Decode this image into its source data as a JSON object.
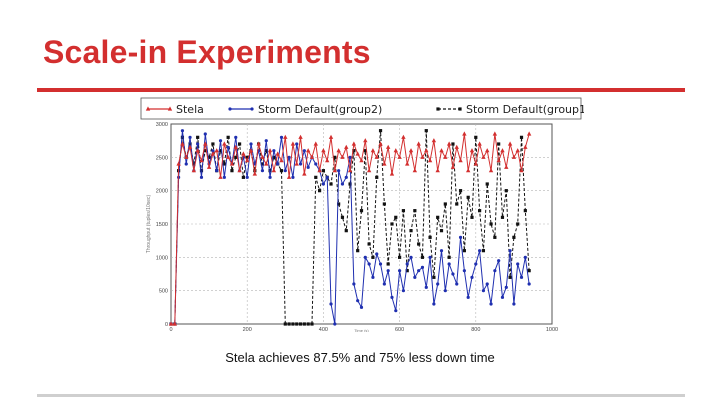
{
  "slide": {
    "title": "Scale-in Experiments",
    "caption": "Stela achieves 87.5% and 75% less down time"
  },
  "colors": {
    "title": "#d32f2f",
    "rule": "#d32f2f",
    "footer_rule": "#cfcfcf"
  },
  "chart_data": {
    "type": "line",
    "title": "",
    "xlabel": "Time (s)",
    "ylabel": "Throughput (tuples/10sec)",
    "xlim": [
      0,
      1000
    ],
    "ylim": [
      0,
      3000
    ],
    "x_ticks": [
      0,
      200,
      400,
      600,
      800,
      1000
    ],
    "y_ticks": [
      0,
      500,
      1000,
      1500,
      2000,
      2500,
      3000
    ],
    "grid": true,
    "legend_position": "top",
    "series": [
      {
        "name": "Stela",
        "color": "#d32f2f",
        "marker": "triangle-up",
        "dash": "solid",
        "x": [
          0,
          10,
          20,
          30,
          40,
          50,
          60,
          70,
          80,
          90,
          100,
          110,
          120,
          130,
          140,
          150,
          160,
          170,
          180,
          190,
          200,
          210,
          220,
          230,
          240,
          250,
          260,
          270,
          280,
          290,
          300,
          310,
          320,
          330,
          340,
          350,
          360,
          370,
          380,
          390,
          400,
          410,
          420,
          430,
          440,
          450,
          460,
          470,
          480,
          490,
          500,
          510,
          520,
          530,
          540,
          550,
          560,
          570,
          580,
          590,
          600,
          610,
          620,
          630,
          640,
          650,
          660,
          670,
          680,
          690,
          700,
          710,
          720,
          730,
          740,
          750,
          760,
          770,
          780,
          790,
          800,
          810,
          820,
          830,
          840,
          850,
          860,
          870,
          880,
          890,
          900,
          910,
          920,
          930,
          940
        ],
        "values": [
          0,
          0,
          2400,
          2700,
          2500,
          2650,
          2300,
          2600,
          2450,
          2700,
          2350,
          2550,
          2600,
          2200,
          2700,
          2500,
          2400,
          2650,
          2300,
          2550,
          2450,
          2600,
          2250,
          2700,
          2500,
          2400,
          2600,
          2300,
          2550,
          2450,
          2800,
          2200,
          2700,
          2400,
          2800,
          2250,
          2600,
          2500,
          2700,
          2300,
          2600,
          2450,
          2800,
          2300,
          2600,
          2500,
          2650,
          2300,
          2700,
          2550,
          2450,
          2750,
          2300,
          2600,
          2500,
          2700,
          2400,
          2650,
          2250,
          2600,
          2500,
          2800,
          2400,
          2600,
          2300,
          2700,
          2500,
          2600,
          2450,
          2750,
          2300,
          2600,
          2500,
          2700,
          2350,
          2650,
          2450,
          2850,
          2300,
          2600,
          2400,
          2700,
          2500,
          2600,
          2300,
          2850,
          2450,
          2600,
          2350,
          2700,
          2500,
          2600,
          2300,
          2650,
          2850
        ]
      },
      {
        "name": "Storm Default(group2)",
        "color": "#1f2fb0",
        "marker": "circle",
        "dash": "solid",
        "x": [
          0,
          10,
          20,
          30,
          40,
          50,
          60,
          70,
          80,
          90,
          100,
          110,
          120,
          130,
          140,
          150,
          160,
          170,
          180,
          190,
          200,
          210,
          220,
          230,
          240,
          250,
          260,
          270,
          280,
          290,
          300,
          310,
          320,
          330,
          340,
          350,
          360,
          370,
          380,
          390,
          400,
          410,
          420,
          430,
          440,
          450,
          460,
          470,
          480,
          490,
          500,
          510,
          520,
          530,
          540,
          550,
          560,
          570,
          580,
          590,
          600,
          610,
          620,
          630,
          640,
          650,
          660,
          670,
          680,
          690,
          700,
          710,
          720,
          730,
          740,
          750,
          760,
          770,
          780,
          790,
          800,
          810,
          820,
          830,
          840,
          850,
          860,
          870,
          880,
          890,
          900,
          910,
          920,
          930,
          940
        ],
        "values": [
          0,
          0,
          2200,
          2900,
          2400,
          2800,
          2300,
          2700,
          2200,
          2850,
          2400,
          2600,
          2300,
          2750,
          2200,
          2650,
          2400,
          2800,
          2300,
          2500,
          2200,
          2700,
          2400,
          2600,
          2300,
          2750,
          2200,
          2600,
          2400,
          2800,
          2300,
          2500,
          2200,
          2700,
          2400,
          2600,
          2350,
          2500,
          2400,
          2300,
          2100,
          2200,
          300,
          0,
          2300,
          2100,
          2200,
          2500,
          600,
          350,
          250,
          1000,
          900,
          700,
          1050,
          900,
          600,
          800,
          400,
          200,
          800,
          500,
          900,
          1000,
          700,
          800,
          850,
          550,
          1000,
          300,
          600,
          1100,
          500,
          900,
          750,
          600,
          1300,
          800,
          400,
          700,
          900,
          1100,
          500,
          600,
          300,
          800,
          950,
          400,
          550,
          1100,
          300,
          900,
          700,
          1000,
          600
        ]
      },
      {
        "name": "Storm Default(group1)",
        "color": "#111111",
        "marker": "square",
        "dash": "dashed",
        "x": [
          0,
          10,
          20,
          30,
          40,
          50,
          60,
          70,
          80,
          90,
          100,
          110,
          120,
          130,
          140,
          150,
          160,
          170,
          180,
          190,
          200,
          210,
          220,
          230,
          240,
          250,
          260,
          270,
          280,
          290,
          300,
          310,
          320,
          330,
          340,
          350,
          360,
          370,
          380,
          390,
          400,
          410,
          420,
          430,
          440,
          450,
          460,
          470,
          480,
          490,
          500,
          510,
          520,
          530,
          540,
          550,
          560,
          570,
          580,
          590,
          600,
          610,
          620,
          630,
          640,
          650,
          660,
          670,
          680,
          690,
          700,
          710,
          720,
          730,
          740,
          750,
          760,
          770,
          780,
          790,
          800,
          810,
          820,
          830,
          840,
          850,
          860,
          870,
          880,
          890,
          900,
          910,
          920,
          930,
          940
        ],
        "values": [
          0,
          0,
          2300,
          2800,
          2500,
          2700,
          2400,
          2800,
          2300,
          2600,
          2500,
          2700,
          2300,
          2600,
          2400,
          2800,
          2300,
          2500,
          2700,
          2200,
          2500,
          2600,
          2300,
          2700,
          2400,
          2600,
          2300,
          2500,
          2400,
          2300,
          0,
          0,
          0,
          0,
          0,
          0,
          0,
          0,
          2200,
          2000,
          2300,
          2200,
          2100,
          2500,
          1800,
          1600,
          1400,
          2100,
          2600,
          1100,
          1700,
          2600,
          1200,
          1000,
          2200,
          2900,
          1800,
          900,
          1500,
          1600,
          1000,
          1700,
          800,
          1400,
          1700,
          1200,
          1000,
          2900,
          1300,
          700,
          1600,
          1400,
          1800,
          1000,
          2700,
          1800,
          2000,
          1100,
          1900,
          1600,
          2800,
          1700,
          1100,
          2100,
          1500,
          1300,
          2700,
          1600,
          2000,
          700,
          1300,
          1500,
          2800,
          1700,
          800
        ]
      }
    ]
  }
}
